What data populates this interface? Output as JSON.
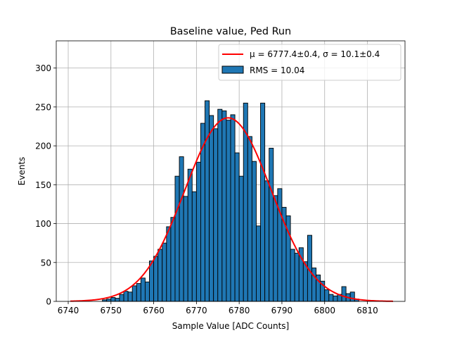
{
  "chart_data": {
    "type": "bar",
    "title": "Baseline value, Ped Run",
    "xlabel": "Sample Value [ADC Counts]",
    "ylabel": "Events",
    "xlim": [
      6737.2,
      6818.8
    ],
    "ylim": [
      0,
      335
    ],
    "xticks": [
      6740,
      6750,
      6760,
      6770,
      6780,
      6790,
      6800,
      6810
    ],
    "yticks": [
      0,
      50,
      100,
      150,
      200,
      250,
      300
    ],
    "grid": true,
    "legend_position": "top-right",
    "bin_width": 1,
    "histogram": {
      "name": "RMS = 10.04",
      "color": "#1f77b4",
      "edge_color": "#000000",
      "bin_starts": [
        6748,
        6749,
        6750,
        6751,
        6752,
        6753,
        6754,
        6755,
        6756,
        6757,
        6758,
        6759,
        6760,
        6761,
        6762,
        6763,
        6764,
        6765,
        6766,
        6767,
        6768,
        6769,
        6770,
        6771,
        6772,
        6773,
        6774,
        6775,
        6776,
        6777,
        6778,
        6779,
        6780,
        6781,
        6782,
        6783,
        6784,
        6785,
        6786,
        6787,
        6788,
        6789,
        6790,
        6791,
        6792,
        6793,
        6794,
        6795,
        6796,
        6797,
        6798,
        6799,
        6800,
        6801,
        6802,
        6803,
        6804,
        6805,
        6806,
        6807
      ],
      "counts": [
        2,
        3,
        5,
        4,
        9,
        13,
        12,
        20,
        23,
        30,
        25,
        52,
        58,
        67,
        75,
        96,
        108,
        161,
        186,
        135,
        170,
        141,
        179,
        229,
        258,
        239,
        222,
        247,
        245,
        233,
        240,
        191,
        161,
        255,
        212,
        180,
        97,
        255,
        155,
        197,
        136,
        145,
        121,
        110,
        67,
        62,
        69,
        51,
        85,
        43,
        34,
        26,
        15,
        9,
        7,
        9,
        19,
        10,
        12,
        3
      ]
    },
    "fit": {
      "name": "μ = 6777.4±0.4, σ = 10.1±0.4",
      "type": "gaussian",
      "mean": 6777.4,
      "sigma": 10.1,
      "amplitude": 236,
      "x_range": [
        6740.5,
        6816
      ],
      "color": "#ff0000"
    },
    "legend": {
      "fit_label": "μ = 6777.4±0.4, σ = 10.1±0.4",
      "hist_label": "RMS = 10.04"
    }
  }
}
